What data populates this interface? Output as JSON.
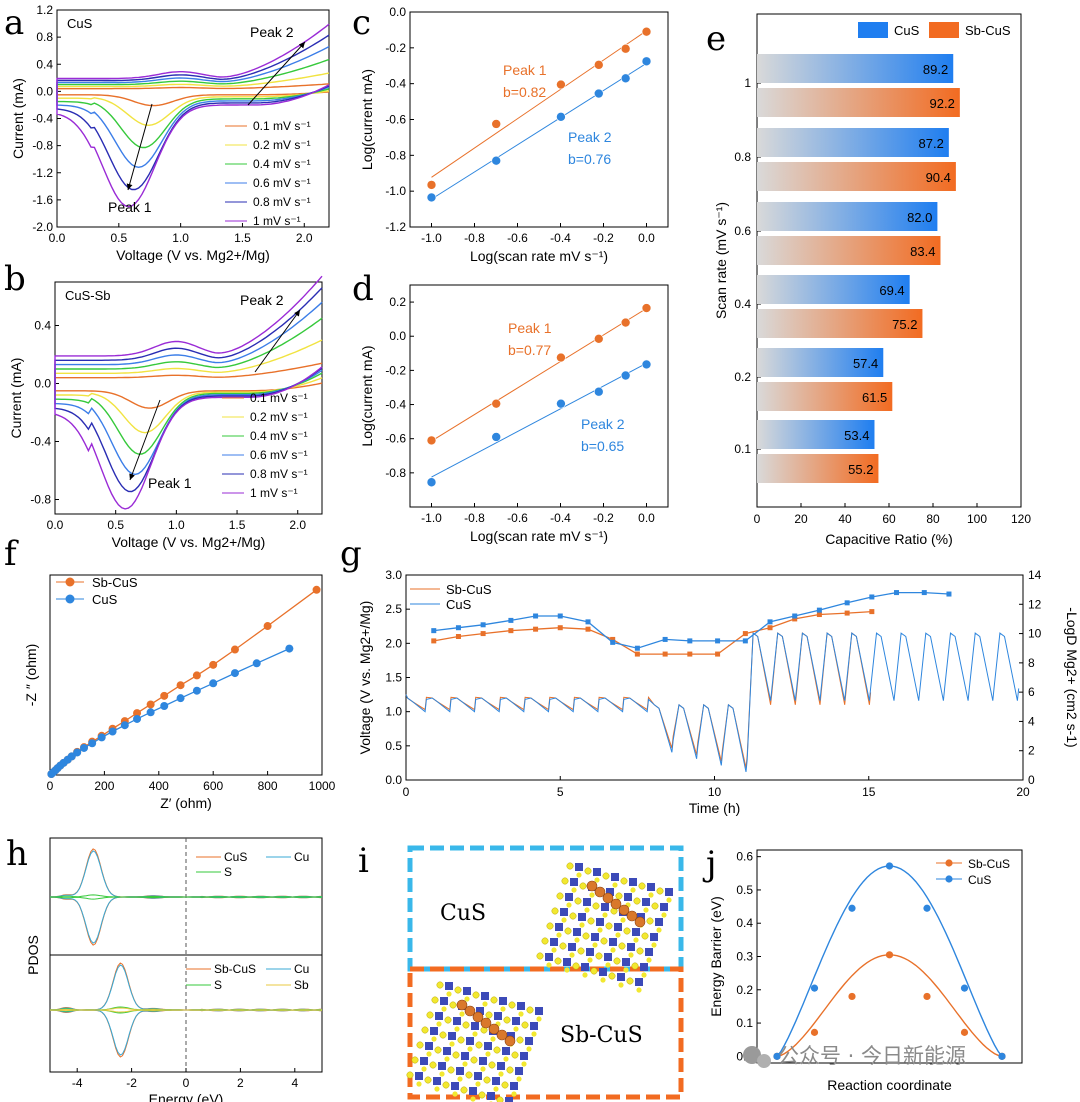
{
  "panel_labels": [
    "a",
    "b",
    "c",
    "d",
    "e",
    "f",
    "g",
    "h",
    "i",
    "j"
  ],
  "scan_legend": [
    "0.1 mV s⁻¹",
    "0.2 mV s⁻¹",
    "0.4 mV s⁻¹",
    "0.6 mV s⁻¹",
    "0.8 mV s⁻¹",
    "1 mV s⁻¹"
  ],
  "cv_colors": [
    "#e8712a",
    "#f1e341",
    "#36c93b",
    "#3c7ee8",
    "#2a2db3",
    "#9a2bd6"
  ],
  "chart_data": [
    {
      "id": "a",
      "type": "line",
      "title": "CuS",
      "xlabel": "Voltage (V vs. Mg2+/Mg)",
      "ylabel": "Current (mA)",
      "xlim": [
        0,
        2.2
      ],
      "ylim": [
        -2.0,
        1.2
      ],
      "xticks": [
        "0.0",
        "0.5",
        "1.0",
        "1.5",
        "2.0"
      ],
      "yticks": [
        "-2.0",
        "-1.6",
        "-1.2",
        "-0.8",
        "-0.4",
        "0.0",
        "0.4",
        "0.8",
        "1.2"
      ],
      "annotations": [
        "Peak 1",
        "Peak 2"
      ],
      "series_desc": "cathodic peak near 0.55-0.8 V, 1 mV/s reaches about -1.5 mA; anodic peak 2 near 1.9-2.2 V up to about 0.85 mA",
      "peak1_min": [
        -0.16,
        -0.42,
        -0.72,
        -0.98,
        -1.28,
        -1.5
      ],
      "peak2_max": [
        0.12,
        0.25,
        0.42,
        0.58,
        0.72,
        0.85
      ]
    },
    {
      "id": "b",
      "type": "line",
      "title": "CuS-Sb",
      "xlabel": "Voltage (V vs. Mg2+/Mg)",
      "ylabel": "Current (mA)",
      "xlim": [
        0,
        2.2
      ],
      "ylim": [
        -0.9,
        0.7
      ],
      "xticks": [
        "0.0",
        "0.5",
        "1.0",
        "1.5",
        "2.0"
      ],
      "yticks": [
        "-0.8",
        "-0.4",
        "0.0",
        "0.4"
      ],
      "annotations": [
        "Peak 1",
        "Peak 2"
      ],
      "peak1_min": [
        -0.12,
        -0.28,
        -0.42,
        -0.55,
        -0.66,
        -0.77
      ],
      "peak2_max": [
        0.15,
        0.28,
        0.4,
        0.48,
        0.55,
        0.6
      ]
    },
    {
      "id": "c",
      "type": "scatter",
      "xlabel": "Log(scan rate mV s⁻¹)",
      "ylabel": "Log(current mA)",
      "xlim": [
        -1.1,
        0.1
      ],
      "ylim": [
        -1.2,
        0.0
      ],
      "xticks": [
        "-1.0",
        "-0.8",
        "-0.6",
        "-0.4",
        "-0.2",
        "0.0"
      ],
      "yticks": [
        "-1.2",
        "-1.0",
        "-0.8",
        "-0.6",
        "-0.4",
        "-0.2",
        "0.0"
      ],
      "x": [
        -1.0,
        -0.699,
        -0.398,
        -0.222,
        -0.097,
        0.0
      ],
      "series": [
        {
          "name": "Peak 1",
          "b_label": "b=0.82",
          "values": [
            -0.965,
            -0.625,
            -0.405,
            -0.295,
            -0.205,
            -0.11
          ]
        },
        {
          "name": "Peak 2",
          "b_label": "b=0.76",
          "values": [
            -1.035,
            -0.83,
            -0.585,
            -0.455,
            -0.37,
            -0.275
          ]
        }
      ]
    },
    {
      "id": "d",
      "type": "scatter",
      "xlabel": "Log(scan rate mV s⁻¹)",
      "ylabel": "Log(current mA)",
      "xlim": [
        -1.1,
        0.1
      ],
      "ylim": [
        -1.0,
        0.3
      ],
      "xticks": [
        "-1.0",
        "-0.8",
        "-0.6",
        "-0.4",
        "-0.2",
        "0.0"
      ],
      "yticks": [
        "-0.8",
        "-0.6",
        "-0.4",
        "-0.2",
        "0.0",
        "0.2"
      ],
      "x": [
        -1.0,
        -0.699,
        -0.398,
        -0.222,
        -0.097,
        0.0
      ],
      "series": [
        {
          "name": "Peak 1",
          "b_label": "b=0.77",
          "values": [
            -0.61,
            -0.395,
            -0.125,
            -0.015,
            0.08,
            0.165
          ]
        },
        {
          "name": "Peak 2",
          "b_label": "b=0.65",
          "values": [
            -0.855,
            -0.59,
            -0.395,
            -0.325,
            -0.23,
            -0.165
          ]
        }
      ]
    },
    {
      "id": "e",
      "type": "bar",
      "xlabel": "Capacitive Ratio (%)",
      "ylabel": "Scan rate (mV s⁻¹)",
      "xlim": [
        0,
        120
      ],
      "xticks": [
        "0",
        "20",
        "40",
        "60",
        "80",
        "100",
        "120"
      ],
      "categories": [
        "1",
        "0.8",
        "0.6",
        "0.4",
        "0.2",
        "0.1"
      ],
      "series": [
        {
          "name": "CuS",
          "values": [
            89.2,
            87.2,
            82.0,
            69.4,
            57.4,
            53.4
          ]
        },
        {
          "name": "Sb-CuS",
          "values": [
            92.2,
            90.4,
            83.4,
            75.2,
            61.5,
            55.2
          ]
        }
      ]
    },
    {
      "id": "f",
      "type": "line",
      "xlabel": "Z′ (ohm)",
      "ylabel": "-Z ″ (ohm)",
      "xlim": [
        0,
        1000
      ],
      "ylim": [
        0,
        1000
      ],
      "xticks": [
        "0",
        "200",
        "400",
        "600",
        "800",
        "1000"
      ],
      "series": [
        {
          "name": "Sb-CuS",
          "x": [
            5,
            12,
            20,
            28,
            38,
            50,
            65,
            80,
            100,
            125,
            155,
            190,
            230,
            275,
            320,
            370,
            420,
            480,
            540,
            600,
            680,
            800,
            980
          ],
          "values": [
            5,
            14,
            24,
            35,
            48,
            62,
            78,
            95,
            118,
            142,
            170,
            200,
            236,
            275,
            316,
            360,
            404,
            458,
            508,
            562,
            640,
            760,
            945
          ]
        },
        {
          "name": "CuS",
          "x": [
            5,
            12,
            20,
            28,
            38,
            50,
            65,
            80,
            100,
            125,
            155,
            190,
            230,
            275,
            320,
            370,
            420,
            480,
            540,
            600,
            680,
            760,
            880
          ],
          "values": [
            5,
            14,
            24,
            35,
            48,
            62,
            78,
            95,
            115,
            138,
            162,
            192,
            222,
            254,
            286,
            320,
            352,
            392,
            430,
            468,
            520,
            570,
            645
          ]
        }
      ]
    },
    {
      "id": "g",
      "type": "line",
      "xlabel": "Time (h)",
      "ylabel": "Voltage (V vs. Mg2+/Mg)",
      "y2label": "-LogD Mg2+ (cm2 s-1)",
      "xlim": [
        0,
        20
      ],
      "ylim": [
        0,
        3.0
      ],
      "y2lim": [
        0,
        14
      ],
      "xticks": [
        "0",
        "5",
        "10",
        "15",
        "20"
      ],
      "yticks": [
        "0.0",
        "0.5",
        "1.0",
        "1.5",
        "2.0",
        "2.5",
        "3.0"
      ],
      "y2ticks": [
        "0",
        "2",
        "4",
        "6",
        "8",
        "10",
        "12",
        "14"
      ],
      "series": [
        {
          "name": "Sb-CuS",
          "x": [
            0.9,
            1.7,
            2.5,
            3.4,
            4.2,
            5.0,
            5.9,
            6.7,
            7.5,
            8.4,
            9.2,
            10.1,
            11.0,
            11.8,
            12.6,
            13.4,
            14.3,
            15.1
          ],
          "values": [
            9.5,
            9.8,
            10.0,
            10.2,
            10.3,
            10.4,
            10.3,
            9.6,
            8.6,
            8.6,
            8.6,
            8.6,
            10.0,
            10.4,
            11.0,
            11.3,
            11.4,
            11.5
          ]
        },
        {
          "name": "CuS",
          "x": [
            0.9,
            1.7,
            2.5,
            3.4,
            4.2,
            5.0,
            5.9,
            6.7,
            7.5,
            8.4,
            9.2,
            10.1,
            11.0,
            11.8,
            12.6,
            13.4,
            14.3,
            15.1,
            15.9,
            16.8,
            17.6
          ],
          "values": [
            10.2,
            10.4,
            10.6,
            10.9,
            11.2,
            11.2,
            10.8,
            9.4,
            9.0,
            9.6,
            9.5,
            9.5,
            9.5,
            10.8,
            11.2,
            11.6,
            12.1,
            12.5,
            12.8,
            12.8,
            12.7
          ]
        }
      ]
    },
    {
      "id": "h",
      "type": "line",
      "xlabel": "Energy (eV)",
      "ylabel": "PDOS",
      "xlim": [
        -5,
        5
      ],
      "xticks": [
        "-4",
        "-2",
        "0",
        "2",
        "4"
      ],
      "legend_top": [
        "CuS",
        "Cu",
        "S"
      ],
      "legend_bottom": [
        "Sb-CuS",
        "Cu",
        "S",
        "Sb"
      ]
    },
    {
      "id": "j",
      "type": "line",
      "xlabel": "Reaction coordinate",
      "ylabel": "Energy Barrier (eV)",
      "ylim": [
        0,
        0.6
      ],
      "yticks": [
        "0.0",
        "0.1",
        "0.2",
        "0.3",
        "0.4",
        "0.5",
        "0.6"
      ],
      "x": [
        0,
        1,
        2,
        3,
        4,
        5,
        6
      ],
      "series": [
        {
          "name": "Sb-CuS",
          "values": [
            0.0,
            0.072,
            0.18,
            0.305,
            0.18,
            0.072,
            0.0
          ]
        },
        {
          "name": "CuS",
          "values": [
            0.0,
            0.205,
            0.445,
            0.572,
            0.445,
            0.205,
            0.0
          ]
        }
      ]
    }
  ],
  "panel_i": {
    "top_label": "CuS",
    "bottom_label": "Sb-CuS"
  },
  "watermark": "公众号 · 今日新能源",
  "colors": {
    "orange": "#e8712a",
    "blue": "#2e86de",
    "cyan_box": "#39b8ea",
    "bar_orange": "#f26b21",
    "bar_blue": "#1f7ef0"
  }
}
